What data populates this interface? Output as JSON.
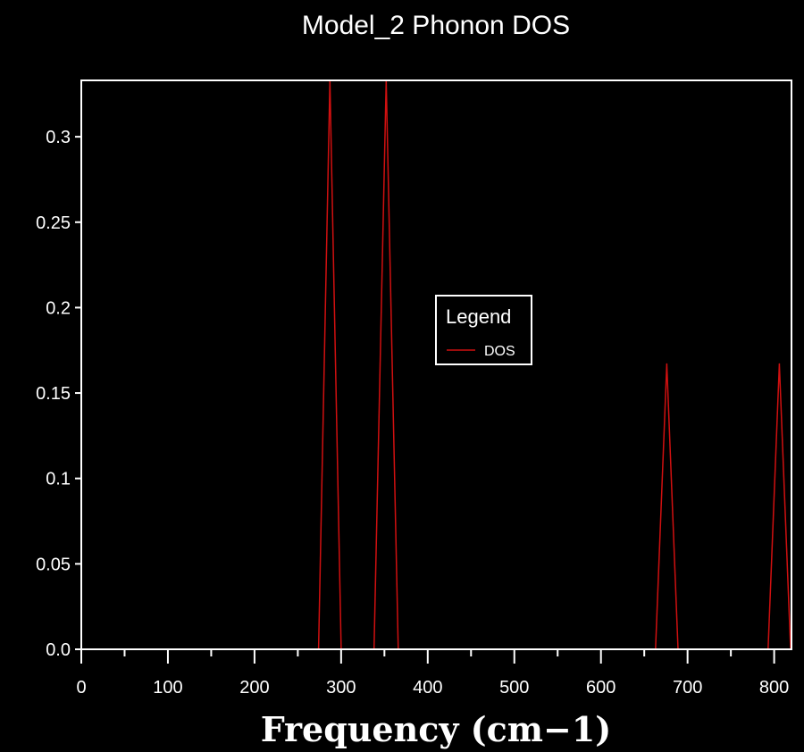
{
  "chart_data": {
    "type": "line",
    "title": "Model_2 Phonon DOS",
    "xlabel": "Frequency (cm−1)",
    "ylabel": "",
    "xlim": [
      0,
      820
    ],
    "ylim": [
      0,
      0.333
    ],
    "xticks": [
      0,
      100,
      200,
      300,
      400,
      500,
      600,
      700,
      800
    ],
    "xtick_labels": [
      "0",
      "100",
      "200",
      "300",
      "400",
      "500",
      "600",
      "700",
      "800"
    ],
    "yticks": [
      0,
      0.05,
      0.1,
      0.15,
      0.2,
      0.25,
      0.3
    ],
    "ytick_labels": [
      "0.0",
      "0.05",
      "0.1",
      "0.15",
      "0.2",
      "0.25",
      "0.3"
    ],
    "legend": {
      "title": "Legend",
      "placement": "center"
    },
    "series": [
      {
        "name": "DOS",
        "color": "#d01010",
        "x": [
          0,
          274,
          287,
          300,
          338,
          352,
          366,
          663,
          676,
          689,
          793,
          806,
          819,
          820
        ],
        "y": [
          0,
          0,
          0.333,
          0,
          0,
          0.333,
          0,
          0,
          0.167,
          0,
          0,
          0.167,
          0,
          0
        ]
      }
    ]
  }
}
